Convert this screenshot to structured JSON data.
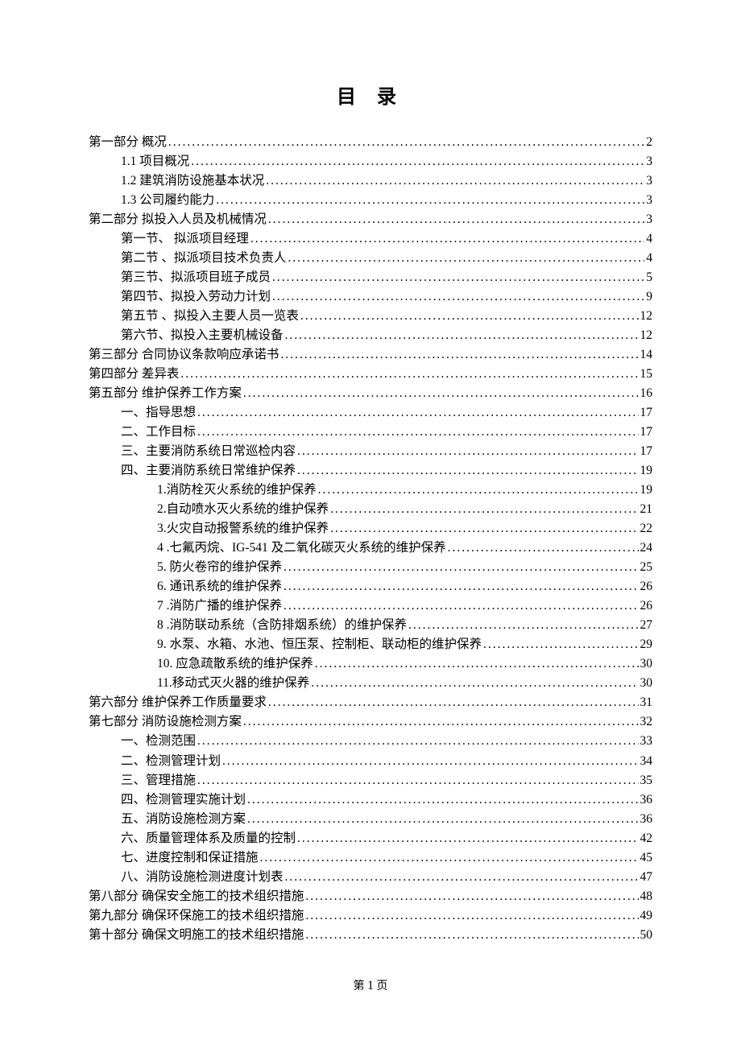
{
  "title": "目 录",
  "footer_prefix": "第 ",
  "footer_page": "1",
  "footer_suffix": " 页",
  "entries": [
    {
      "level": 0,
      "label": "第一部分   概况",
      "page": "2"
    },
    {
      "level": 1,
      "label": "1.1 项目概况",
      "page": "3"
    },
    {
      "level": 1,
      "label": "1.2  建筑消防设施基本状况",
      "page": "3"
    },
    {
      "level": 1,
      "label": "1.3  公司履约能力",
      "page": "3"
    },
    {
      "level": 0,
      "label": "第二部分    拟投入人员及机械情况",
      "page": "3"
    },
    {
      "level": 1,
      "label": "第一节、 拟派项目经理",
      "page": "4"
    },
    {
      "level": 1,
      "label": "第二节 、拟派项目技术负责人",
      "page": "4"
    },
    {
      "level": 1,
      "label": "第三节、拟派项目班子成员",
      "page": "5"
    },
    {
      "level": 1,
      "label": "第四节、拟投入劳动力计划",
      "page": "9"
    },
    {
      "level": 1,
      "label": "第五节 、拟投入主要人员一览表",
      "page": "12"
    },
    {
      "level": 1,
      "label": "第六节、拟投入主要机械设备",
      "page": "12"
    },
    {
      "level": 0,
      "label": "第三部分  合同协议条款响应承诺书",
      "page": "14"
    },
    {
      "level": 0,
      "label": "第四部分  差异表",
      "page": "15"
    },
    {
      "level": 0,
      "label": "第五部分  维护保养工作方案",
      "page": "16"
    },
    {
      "level": 1,
      "label": "一、指导思想",
      "page": "17"
    },
    {
      "level": 1,
      "label": "二、工作目标",
      "page": "17"
    },
    {
      "level": 1,
      "label": "三、主要消防系统日常巡检内容",
      "page": "17"
    },
    {
      "level": 1,
      "label": "四、主要消防系统日常维护保养",
      "page": "19"
    },
    {
      "level": 2,
      "label": "1.消防栓灭火系统的维护保养",
      "page": "19"
    },
    {
      "level": 2,
      "label": "2.自动喷水灭火系统的维护保养",
      "page": "21"
    },
    {
      "level": 2,
      "label": "3.火灾自动报警系统的维护保养",
      "page": "22"
    },
    {
      "level": 2,
      "label": "4 .七氟丙烷、IG-541 及二氧化碳灭火系统的维护保养",
      "page": "24"
    },
    {
      "level": 2,
      "label": "5.  防火卷帘的维护保养",
      "page": "25"
    },
    {
      "level": 2,
      "label": "6.  通讯系统的维护保养",
      "page": "26"
    },
    {
      "level": 2,
      "label": "7 .消防广播的维护保养",
      "page": "26"
    },
    {
      "level": 2,
      "label": "8 .消防联动系统（含防排烟系统）的维护保养",
      "page": "27"
    },
    {
      "level": 2,
      "label": "9.  水泵、水箱、水池、恒压泵、控制柜、联动柜的维护保养",
      "page": "29"
    },
    {
      "level": 2,
      "label": "10.  应急疏散系统的维护保养",
      "page": "30"
    },
    {
      "level": 2,
      "label": "11.移动式灭火器的维护保养",
      "page": "30"
    },
    {
      "level": 0,
      "label": "第六部分  维护保养工作质量要求",
      "page": "31"
    },
    {
      "level": 0,
      "label": "第七部分  消防设施检测方案",
      "page": "32"
    },
    {
      "level": 1,
      "label": "一、检测范围",
      "page": "33"
    },
    {
      "level": 1,
      "label": "二、检测管理计划",
      "page": "34"
    },
    {
      "level": 1,
      "label": "三、管理措施",
      "page": "35"
    },
    {
      "level": 1,
      "label": "四、检测管理实施计划",
      "page": "36"
    },
    {
      "level": 1,
      "label": "五、消防设施检测方案",
      "page": "36"
    },
    {
      "level": 1,
      "label": "六、质量管理体系及质量的控制",
      "page": "42"
    },
    {
      "level": 1,
      "label": "七、进度控制和保证措施",
      "page": "45"
    },
    {
      "level": 1,
      "label": "八、消防设施检测进度计划表",
      "page": "47"
    },
    {
      "level": 0,
      "label": "第八部分  确保安全施工的技术组织措施",
      "page": "48"
    },
    {
      "level": 0,
      "label": "第九部分  确保环保施工的技术组织措施",
      "page": "49"
    },
    {
      "level": 0,
      "label": "第十部分  确保文明施工的技术组织措施",
      "page": "50"
    }
  ]
}
